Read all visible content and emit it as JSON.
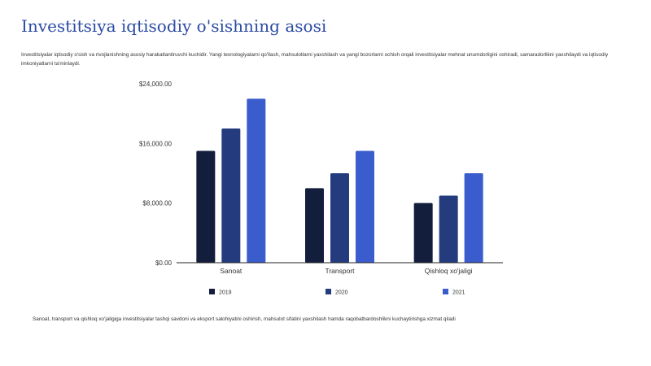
{
  "page": {
    "title": "Investitsiya iqtisodiy o'sishning asosi",
    "intro": "Investitsiyalar iqtisodiy o'sish va rivojlanishning asosiy harakatlantiruvchi kuchidir. Yangi texnologiyalarni qo'llash, mahsulotlarni yaxshilash va yangi bozorlarni ochish orqali investitsiyalar mehnat unumdorligini oshiradi, samaradorlikni yaxshilaydi va iqtisodiy imkoniyatlarni ta'minlaydi.",
    "footer_note": "Sanoat, transport va qishloq xo'jaligiga investitsiyalar tashqi savdoni va eksport salohiyatini oshirish, mahsulot sifatini yaxshilash hamda raqobatbardoshlikni kuchaytirishga xizmat qiladi"
  },
  "chart_data": {
    "type": "bar",
    "categories": [
      "Sanoat",
      "Transport",
      "Qishloq xo'jaligi"
    ],
    "series": [
      {
        "name": "2019",
        "color": "#131e3d",
        "values": [
          15000,
          10000,
          8000
        ]
      },
      {
        "name": "2020",
        "color": "#243c7e",
        "values": [
          18000,
          12000,
          9000
        ]
      },
      {
        "name": "2021",
        "color": "#3a5ccc",
        "values": [
          22000,
          15000,
          12000
        ]
      }
    ],
    "yticks": [
      "$0.00",
      "$8,000.00",
      "$16,000.00",
      "$24,000.00"
    ],
    "ylim": [
      0,
      24000
    ],
    "grid": false,
    "legend_position": "bottom"
  }
}
